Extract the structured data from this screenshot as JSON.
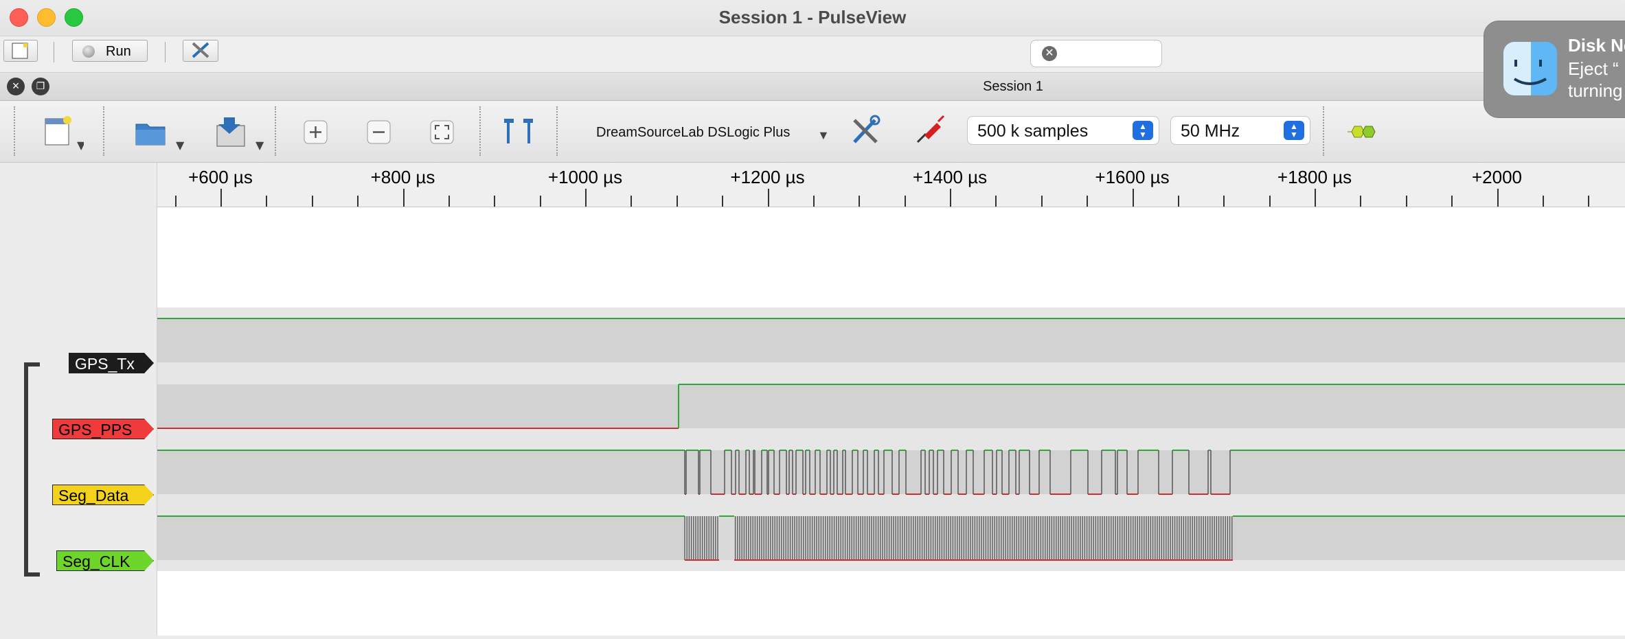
{
  "window": {
    "title": "Session 1 - PulseView",
    "session_title": "Session 1"
  },
  "toolbar1": {
    "run_label": "Run"
  },
  "toolbar2": {
    "device": "DreamSourceLab DSLogic Plus",
    "samples": "500 k samples",
    "samplerate": "50 MHz"
  },
  "ruler": {
    "labels": [
      "+600 µs",
      "+800 µs",
      "+1000 µs",
      "+1200 µs",
      "+1400 µs",
      "+1600 µs",
      "+1800 µs",
      "+2000"
    ]
  },
  "channels": [
    {
      "name": "GPS_Tx",
      "color": "#1c1c1c",
      "text_color": "#ffffff"
    },
    {
      "name": "GPS_PPS",
      "color": "#ef3b3b",
      "text_color": "#000000"
    },
    {
      "name": "Seg_Data",
      "color": "#f4d21c",
      "text_color": "#000000"
    },
    {
      "name": "Seg_CLK",
      "color": "#6ed62a",
      "text_color": "#000000"
    }
  ],
  "notification": {
    "title": "Disk No",
    "line1": "Eject “",
    "line2": "turning"
  },
  "colors": {
    "high": "#2ea836",
    "low": "#cc2f2f"
  }
}
